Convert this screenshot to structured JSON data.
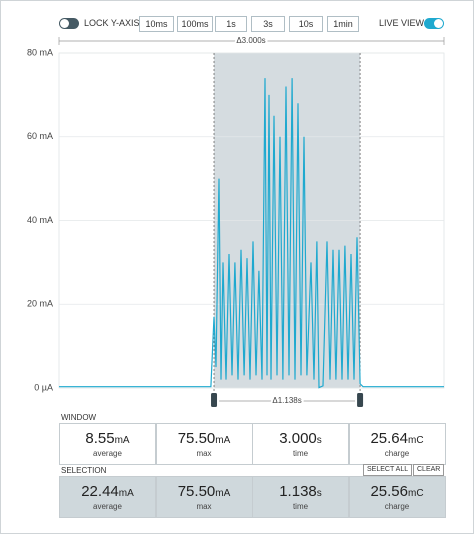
{
  "toolbar": {
    "lock_label": "LOCK Y-AXIS",
    "ranges": [
      "10ms",
      "100ms",
      "1s",
      "3s",
      "10s",
      "1min"
    ],
    "live_label": "LIVE VIEW"
  },
  "chart_data": {
    "type": "line",
    "window_label": "Δ3.000s",
    "selection_label": "Δ1.138s",
    "selection": [
      1.208,
      2.346
    ],
    "x": [
      0,
      1.184,
      1.208,
      1.223,
      1.247,
      1.262,
      1.278,
      1.301,
      1.325,
      1.348,
      1.371,
      1.395,
      1.418,
      1.442,
      1.465,
      1.488,
      1.512,
      1.535,
      1.558,
      1.582,
      1.605,
      1.621,
      1.636,
      1.652,
      1.675,
      1.699,
      1.722,
      1.745,
      1.769,
      1.792,
      1.816,
      1.839,
      1.862,
      1.886,
      1.909,
      1.932,
      1.964,
      1.987,
      2.01,
      2.026,
      2.057,
      2.088,
      2.112,
      2.135,
      2.158,
      2.182,
      2.205,
      2.228,
      2.252,
      2.275,
      2.299,
      2.322,
      2.346,
      2.369,
      3.0
    ],
    "series": [
      {
        "color": "#1fa9cf",
        "values": [
          0.3,
          0.3,
          17,
          5,
          50,
          2,
          30,
          2,
          32,
          3,
          30,
          2,
          33,
          3,
          31,
          2,
          35,
          3,
          28,
          2,
          74,
          3,
          70,
          2,
          65,
          3,
          60,
          2,
          72,
          3,
          74,
          2,
          68,
          3,
          60,
          3,
          30,
          2,
          35,
          0.1,
          0.5,
          35,
          2,
          33,
          2,
          33,
          2,
          34,
          2,
          32,
          2,
          36,
          1,
          0.3,
          0.3
        ]
      }
    ],
    "xlim": [
      0,
      3.0
    ],
    "ylim": [
      0,
      80
    ],
    "yticks": [
      {
        "value": 0,
        "label": "0 µA"
      },
      {
        "value": 20,
        "label": "20 mA"
      },
      {
        "value": 40,
        "label": "40 mA"
      },
      {
        "value": 60,
        "label": "60 mA"
      },
      {
        "value": 80,
        "label": "80 mA"
      }
    ],
    "grid": true
  },
  "window_panel": {
    "label": "WINDOW",
    "stats": [
      {
        "value": "8.55",
        "unit": "mA",
        "label": "average"
      },
      {
        "value": "75.50",
        "unit": "mA",
        "label": "max"
      },
      {
        "value": "3.000",
        "unit": "s",
        "label": "time"
      },
      {
        "value": "25.64",
        "unit": "mC",
        "label": "charge"
      }
    ]
  },
  "selection_panel": {
    "label": "SELECTION",
    "buttons": [
      "SELECT ALL",
      "CLEAR"
    ],
    "stats": [
      {
        "value": "22.44",
        "unit": "mA",
        "label": "average"
      },
      {
        "value": "75.50",
        "unit": "mA",
        "label": "max"
      },
      {
        "value": "1.138",
        "unit": "s",
        "label": "time"
      },
      {
        "value": "25.56",
        "unit": "mC",
        "label": "charge"
      }
    ]
  }
}
